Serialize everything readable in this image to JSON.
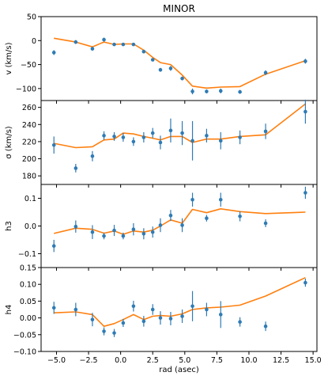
{
  "chart_data": {
    "type": "line",
    "title": "MINOR",
    "xlabel": "rad (asec)",
    "xlim": [
      -6.2,
      15.3
    ],
    "xticks": [
      -5.0,
      -2.5,
      0.0,
      2.5,
      5.0,
      7.5,
      10.0,
      12.5,
      15.0
    ],
    "xtick_labels": [
      "−5.0",
      "−2.5",
      "0.0",
      "2.5",
      "5.0",
      "7.5",
      "10.0",
      "12.5",
      "15.0"
    ],
    "colors": {
      "data": "#2f7bb4",
      "model": "#ff7f0e"
    },
    "panels": [
      {
        "ylabel": "v (km/s)",
        "ylim": [
          -125,
          50
        ],
        "yticks": [
          50,
          0,
          -50,
          -100
        ],
        "ytick_labels": [
          "50",
          "0",
          "−50",
          "−100"
        ],
        "data": [
          {
            "x": -5.2,
            "y": -25,
            "err": 5
          },
          {
            "x": -3.5,
            "y": -3,
            "err": 4
          },
          {
            "x": -2.2,
            "y": -17,
            "err": 4
          },
          {
            "x": -1.3,
            "y": 2,
            "err": 4
          },
          {
            "x": -0.5,
            "y": -8,
            "err": 3
          },
          {
            "x": 0.2,
            "y": -8,
            "err": 3
          },
          {
            "x": 1.0,
            "y": -8,
            "err": 3
          },
          {
            "x": 1.8,
            "y": -23,
            "err": 3
          },
          {
            "x": 2.5,
            "y": -40,
            "err": 3
          },
          {
            "x": 3.1,
            "y": -61,
            "err": 4
          },
          {
            "x": 3.9,
            "y": -58,
            "err": 5
          },
          {
            "x": 4.8,
            "y": -79,
            "err": 4
          },
          {
            "x": 5.6,
            "y": -106,
            "err": 6
          },
          {
            "x": 6.7,
            "y": -106,
            "err": 4
          },
          {
            "x": 7.8,
            "y": -105,
            "err": 5
          },
          {
            "x": 9.3,
            "y": -107,
            "err": 4
          },
          {
            "x": 11.3,
            "y": -67,
            "err": 5
          },
          {
            "x": 14.4,
            "y": -43,
            "err": 5
          }
        ],
        "model": [
          [
            -5.2,
            5
          ],
          [
            -3.5,
            -3
          ],
          [
            -2.2,
            -13
          ],
          [
            -1.3,
            -3
          ],
          [
            -0.5,
            -8
          ],
          [
            0.2,
            -7
          ],
          [
            1.0,
            -7
          ],
          [
            1.8,
            -20
          ],
          [
            2.5,
            -35
          ],
          [
            3.1,
            -46
          ],
          [
            3.9,
            -50
          ],
          [
            4.8,
            -72
          ],
          [
            5.6,
            -95
          ],
          [
            6.7,
            -99
          ],
          [
            7.8,
            -97
          ],
          [
            9.3,
            -96
          ],
          [
            11.3,
            -70
          ],
          [
            14.4,
            -42
          ]
        ]
      },
      {
        "ylabel": "σ (km/s)",
        "ylim": [
          170,
          268
        ],
        "yticks": [
          260,
          240,
          220,
          200,
          180
        ],
        "ytick_labels": [
          "260",
          "240",
          "220",
          "200",
          "180"
        ],
        "data": [
          {
            "x": -5.2,
            "y": 216,
            "err": 10
          },
          {
            "x": -3.5,
            "y": 189,
            "err": 5
          },
          {
            "x": -2.2,
            "y": 203,
            "err": 6
          },
          {
            "x": -1.3,
            "y": 227,
            "err": 5
          },
          {
            "x": -0.5,
            "y": 226,
            "err": 5
          },
          {
            "x": 0.2,
            "y": 225,
            "err": 5
          },
          {
            "x": 1.0,
            "y": 220,
            "err": 5
          },
          {
            "x": 1.8,
            "y": 225,
            "err": 6
          },
          {
            "x": 2.5,
            "y": 230,
            "err": 6
          },
          {
            "x": 3.1,
            "y": 219,
            "err": 8
          },
          {
            "x": 3.9,
            "y": 233,
            "err": 14
          },
          {
            "x": 4.8,
            "y": 230,
            "err": 14
          },
          {
            "x": 5.6,
            "y": 221,
            "err": 23
          },
          {
            "x": 6.7,
            "y": 227,
            "err": 8
          },
          {
            "x": 7.8,
            "y": 221,
            "err": 10
          },
          {
            "x": 9.3,
            "y": 225,
            "err": 8
          },
          {
            "x": 11.3,
            "y": 232,
            "err": 9
          },
          {
            "x": 14.4,
            "y": 255,
            "err": 14
          }
        ],
        "model": [
          [
            -5.2,
            218
          ],
          [
            -3.5,
            213
          ],
          [
            -2.2,
            214
          ],
          [
            -1.3,
            222
          ],
          [
            -0.5,
            223
          ],
          [
            0.2,
            230
          ],
          [
            1.0,
            229
          ],
          [
            1.8,
            226
          ],
          [
            2.5,
            224
          ],
          [
            3.1,
            222
          ],
          [
            3.9,
            226
          ],
          [
            4.8,
            226
          ],
          [
            5.6,
            219
          ],
          [
            6.7,
            223
          ],
          [
            7.8,
            223
          ],
          [
            9.3,
            226
          ],
          [
            11.3,
            228
          ],
          [
            14.4,
            264
          ]
        ]
      },
      {
        "ylabel": "h3",
        "ylim": [
          -0.15,
          0.15
        ],
        "yticks": [
          0.1,
          0.0,
          -0.1
        ],
        "ytick_labels": [
          "0.1",
          "0.0",
          "−0.1"
        ],
        "data": [
          {
            "x": -5.2,
            "y": -0.072,
            "err": 0.022
          },
          {
            "x": -3.5,
            "y": -0.002,
            "err": 0.022
          },
          {
            "x": -2.2,
            "y": -0.022,
            "err": 0.025
          },
          {
            "x": -1.3,
            "y": -0.036,
            "err": 0.012
          },
          {
            "x": -0.5,
            "y": -0.016,
            "err": 0.02
          },
          {
            "x": 0.2,
            "y": -0.036,
            "err": 0.012
          },
          {
            "x": 1.0,
            "y": -0.012,
            "err": 0.022
          },
          {
            "x": 1.8,
            "y": -0.028,
            "err": 0.02
          },
          {
            "x": 2.5,
            "y": -0.022,
            "err": 0.02
          },
          {
            "x": 3.1,
            "y": 0.003,
            "err": 0.025
          },
          {
            "x": 3.9,
            "y": 0.038,
            "err": 0.02
          },
          {
            "x": 4.8,
            "y": 0.003,
            "err": 0.025
          },
          {
            "x": 5.6,
            "y": 0.095,
            "err": 0.025
          },
          {
            "x": 6.7,
            "y": 0.028,
            "err": 0.012
          },
          {
            "x": 7.8,
            "y": 0.095,
            "err": 0.025
          },
          {
            "x": 9.3,
            "y": 0.035,
            "err": 0.018
          },
          {
            "x": 11.3,
            "y": 0.01,
            "err": 0.014
          },
          {
            "x": 14.4,
            "y": 0.12,
            "err": 0.022
          }
        ],
        "model": [
          [
            -5.2,
            -0.027
          ],
          [
            -3.5,
            -0.008
          ],
          [
            -2.2,
            -0.012
          ],
          [
            -1.3,
            -0.026
          ],
          [
            -0.5,
            -0.018
          ],
          [
            0.2,
            -0.03
          ],
          [
            1.0,
            -0.018
          ],
          [
            1.8,
            -0.022
          ],
          [
            2.5,
            -0.015
          ],
          [
            3.1,
            0.0
          ],
          [
            3.9,
            0.022
          ],
          [
            4.8,
            0.01
          ],
          [
            5.6,
            0.06
          ],
          [
            6.7,
            0.048
          ],
          [
            7.8,
            0.062
          ],
          [
            9.3,
            0.052
          ],
          [
            11.3,
            0.045
          ],
          [
            14.4,
            0.05
          ]
        ]
      },
      {
        "ylabel": "h4",
        "ylim": [
          -0.1,
          0.15
        ],
        "yticks": [
          0.15,
          0.1,
          0.05,
          0.0,
          -0.05,
          -0.1
        ],
        "ytick_labels": [
          "0.15",
          "0.10",
          "0.05",
          "0.00",
          "−0.05",
          "−0.10"
        ],
        "data": [
          {
            "x": -5.2,
            "y": 0.03,
            "err": 0.018
          },
          {
            "x": -3.5,
            "y": 0.025,
            "err": 0.02
          },
          {
            "x": -2.2,
            "y": -0.005,
            "err": 0.02
          },
          {
            "x": -1.3,
            "y": -0.04,
            "err": 0.012
          },
          {
            "x": -0.5,
            "y": -0.045,
            "err": 0.012
          },
          {
            "x": 0.2,
            "y": -0.015,
            "err": 0.012
          },
          {
            "x": 1.0,
            "y": 0.035,
            "err": 0.016
          },
          {
            "x": 1.8,
            "y": -0.01,
            "err": 0.016
          },
          {
            "x": 2.5,
            "y": 0.025,
            "err": 0.016
          },
          {
            "x": 3.1,
            "y": 0.0,
            "err": 0.02
          },
          {
            "x": 3.9,
            "y": -0.002,
            "err": 0.02
          },
          {
            "x": 4.8,
            "y": 0.005,
            "err": 0.02
          },
          {
            "x": 5.6,
            "y": 0.035,
            "err": 0.045
          },
          {
            "x": 6.7,
            "y": 0.025,
            "err": 0.02
          },
          {
            "x": 7.8,
            "y": 0.01,
            "err": 0.04
          },
          {
            "x": 9.3,
            "y": -0.012,
            "err": 0.014
          },
          {
            "x": 11.3,
            "y": -0.025,
            "err": 0.014
          },
          {
            "x": 14.4,
            "y": 0.105,
            "err": 0.012
          }
        ],
        "model": [
          [
            -5.2,
            0.015
          ],
          [
            -3.5,
            0.018
          ],
          [
            -2.2,
            0.01
          ],
          [
            -1.3,
            -0.025
          ],
          [
            -0.5,
            -0.017
          ],
          [
            0.2,
            -0.005
          ],
          [
            1.0,
            0.01
          ],
          [
            1.8,
            -0.005
          ],
          [
            2.5,
            0.005
          ],
          [
            3.1,
            0.007
          ],
          [
            3.9,
            0.005
          ],
          [
            4.8,
            0.012
          ],
          [
            5.6,
            0.025
          ],
          [
            6.7,
            0.03
          ],
          [
            7.8,
            0.032
          ],
          [
            9.3,
            0.038
          ],
          [
            11.3,
            0.065
          ],
          [
            14.4,
            0.12
          ]
        ]
      }
    ]
  }
}
